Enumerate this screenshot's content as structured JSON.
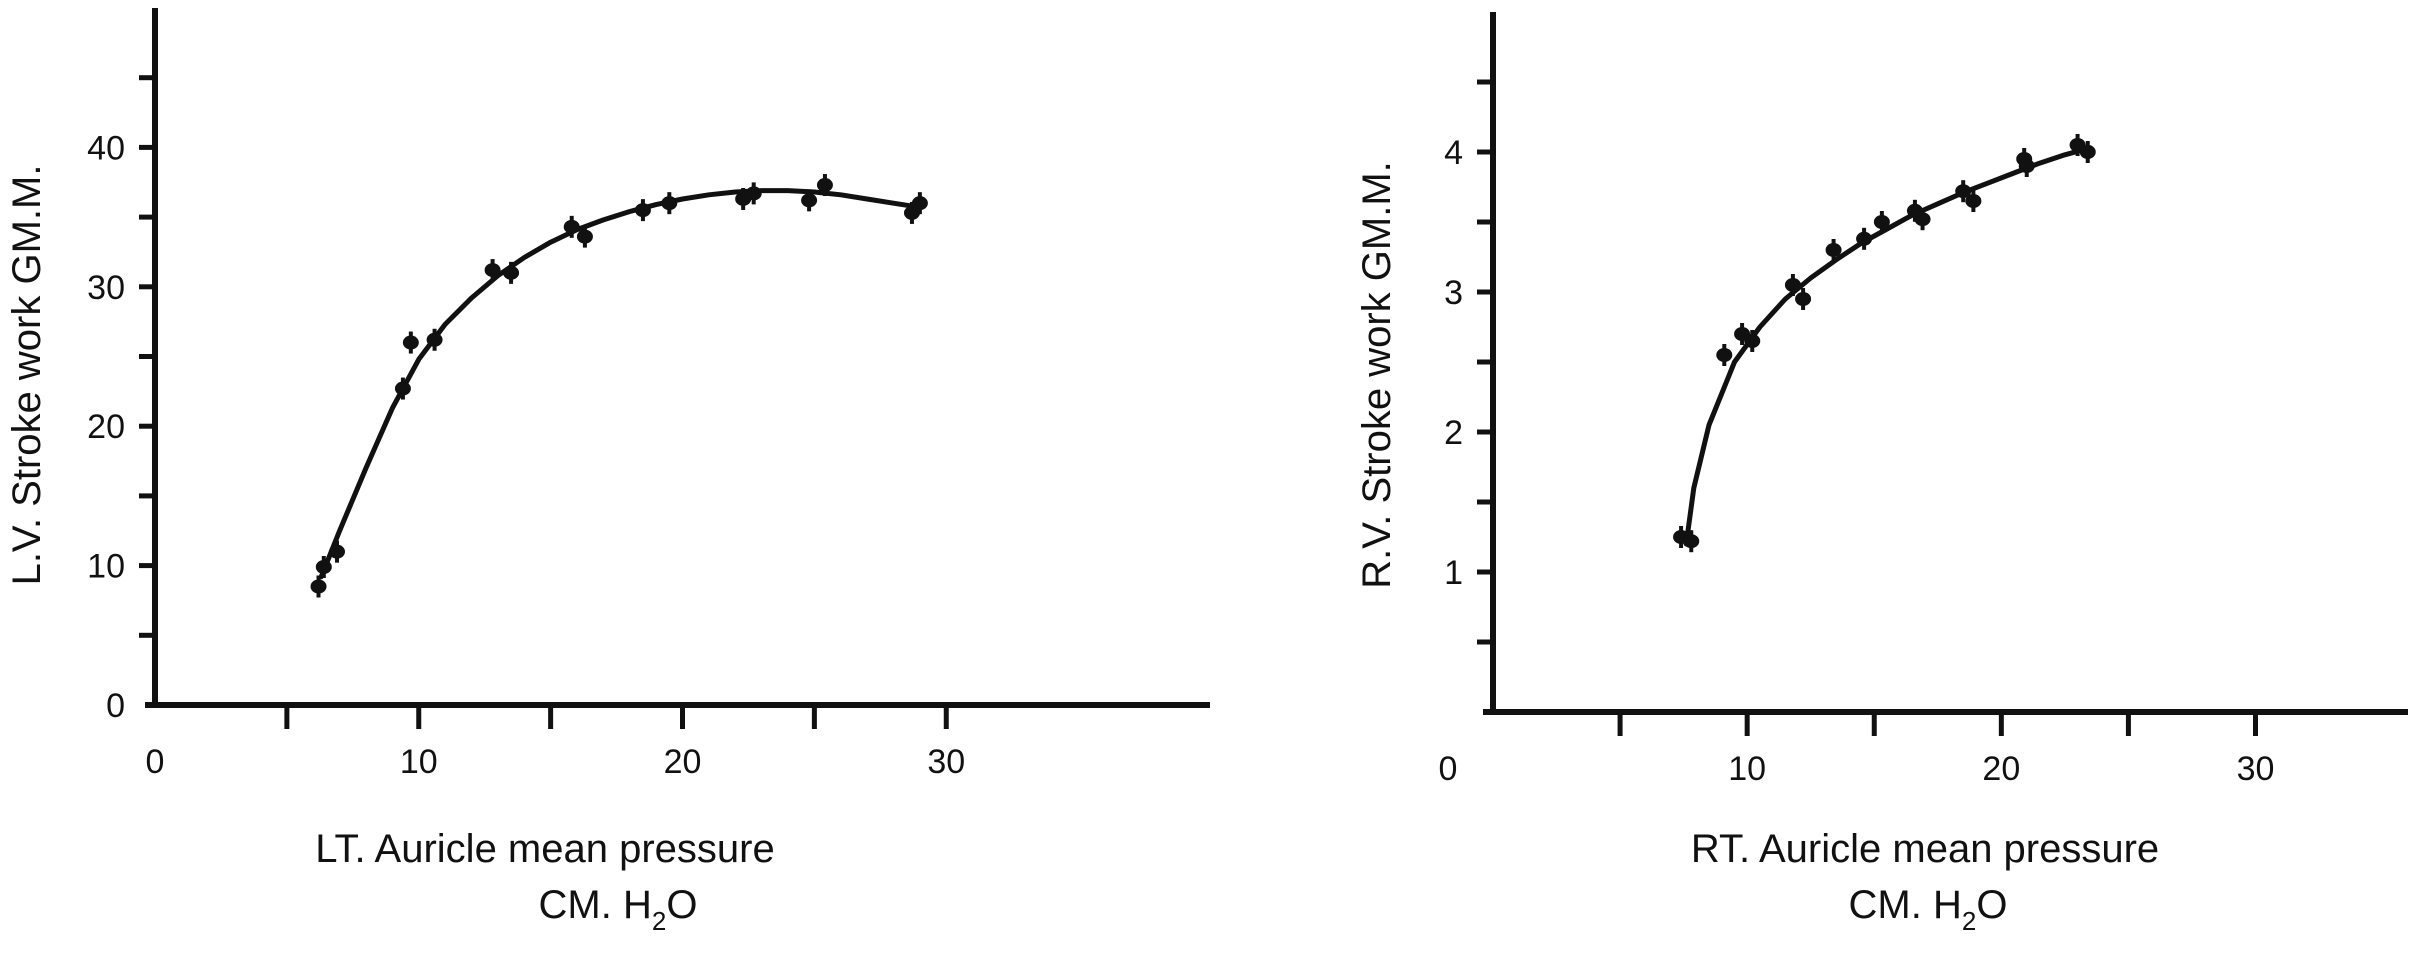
{
  "colors": {
    "ink": "#111111",
    "background": "#ffffff"
  },
  "chart_data": [
    {
      "type": "line",
      "title": "",
      "xlabel": "LT. Auricle mean pressure",
      "xlabel_unit": {
        "prefix": "CM. H",
        "subscript": "2",
        "suffix": "O"
      },
      "ylabel": "L.V. Stroke work GM.M.",
      "xlim": [
        0,
        40
      ],
      "ylim": [
        0,
        50
      ],
      "x_ticks": [
        0,
        10,
        20,
        30
      ],
      "y_ticks": [
        0,
        10,
        20,
        30,
        40
      ],
      "x_minor_ticks": [
        5,
        10,
        15,
        20,
        25,
        30
      ],
      "y_minor_ticks": [
        5,
        10,
        15,
        20,
        25,
        30,
        35,
        40,
        45
      ],
      "grid": false,
      "series": [
        {
          "points": [
            {
              "x": 6.2,
              "y": 8.5
            },
            {
              "x": 6.4,
              "y": 9.9
            },
            {
              "x": 6.9,
              "y": 11.0
            },
            {
              "x": 9.4,
              "y": 22.7
            },
            {
              "x": 9.7,
              "y": 26.0
            },
            {
              "x": 10.6,
              "y": 26.2
            },
            {
              "x": 12.8,
              "y": 31.2
            },
            {
              "x": 13.5,
              "y": 31.0
            },
            {
              "x": 15.8,
              "y": 34.3
            },
            {
              "x": 16.3,
              "y": 33.6
            },
            {
              "x": 18.5,
              "y": 35.5
            },
            {
              "x": 19.5,
              "y": 36.0
            },
            {
              "x": 22.3,
              "y": 36.3
            },
            {
              "x": 22.7,
              "y": 36.7
            },
            {
              "x": 24.8,
              "y": 36.2
            },
            {
              "x": 25.4,
              "y": 37.3
            },
            {
              "x": 28.7,
              "y": 35.3
            },
            {
              "x": 29.0,
              "y": 36.0
            }
          ],
          "curve": [
            [
              6.3,
              9.2
            ],
            [
              7,
              12.5
            ],
            [
              8,
              17
            ],
            [
              9,
              21.3
            ],
            [
              10,
              24.8
            ],
            [
              11,
              27.3
            ],
            [
              12,
              29.2
            ],
            [
              13,
              30.8
            ],
            [
              14,
              32.1
            ],
            [
              15,
              33.2
            ],
            [
              16,
              34.1
            ],
            [
              17,
              34.8
            ],
            [
              18,
              35.4
            ],
            [
              19,
              35.9
            ],
            [
              20,
              36.3
            ],
            [
              21,
              36.6
            ],
            [
              22,
              36.8
            ],
            [
              23,
              36.9
            ],
            [
              24,
              36.9
            ],
            [
              25,
              36.8
            ],
            [
              26,
              36.6
            ],
            [
              27,
              36.3
            ],
            [
              28,
              36.0
            ],
            [
              29,
              35.7
            ]
          ]
        }
      ]
    },
    {
      "type": "line",
      "title": "",
      "xlabel": "RT. Auricle mean pressure",
      "xlabel_unit": {
        "prefix": "CM. H",
        "subscript": "2",
        "suffix": "O"
      },
      "ylabel": "R.V. Stroke work GM.M.",
      "xlim": [
        0,
        36
      ],
      "ylim": [
        0,
        5
      ],
      "x_ticks": [
        0,
        10,
        20,
        30
      ],
      "y_ticks": [
        1,
        2,
        3,
        4
      ],
      "x_minor_ticks": [
        5,
        10,
        15,
        20,
        25,
        30
      ],
      "y_minor_ticks": [
        0.5,
        1,
        1.5,
        2,
        2.5,
        3,
        3.5,
        4,
        4.5
      ],
      "grid": false,
      "series": [
        {
          "points": [
            {
              "x": 7.4,
              "y": 1.25
            },
            {
              "x": 7.8,
              "y": 1.22
            },
            {
              "x": 9.1,
              "y": 2.55
            },
            {
              "x": 9.8,
              "y": 2.7
            },
            {
              "x": 10.2,
              "y": 2.65
            },
            {
              "x": 11.8,
              "y": 3.05
            },
            {
              "x": 12.2,
              "y": 2.95
            },
            {
              "x": 13.4,
              "y": 3.3
            },
            {
              "x": 14.6,
              "y": 3.38
            },
            {
              "x": 15.3,
              "y": 3.5
            },
            {
              "x": 16.6,
              "y": 3.58
            },
            {
              "x": 16.9,
              "y": 3.52
            },
            {
              "x": 18.5,
              "y": 3.72
            },
            {
              "x": 18.9,
              "y": 3.65
            },
            {
              "x": 20.9,
              "y": 3.95
            },
            {
              "x": 21.0,
              "y": 3.9
            },
            {
              "x": 23.0,
              "y": 4.05
            },
            {
              "x": 23.4,
              "y": 4.0
            }
          ],
          "curve": [
            [
              7.6,
              1.2
            ],
            [
              7.9,
              1.6
            ],
            [
              8.5,
              2.05
            ],
            [
              9.5,
              2.5
            ],
            [
              10.5,
              2.75
            ],
            [
              11.5,
              2.95
            ],
            [
              12.5,
              3.1
            ],
            [
              13.5,
              3.23
            ],
            [
              14.5,
              3.35
            ],
            [
              15.5,
              3.45
            ],
            [
              16.5,
              3.55
            ],
            [
              17.5,
              3.63
            ],
            [
              18.5,
              3.71
            ],
            [
              19.5,
              3.78
            ],
            [
              20.5,
              3.85
            ],
            [
              21.5,
              3.92
            ],
            [
              22.5,
              3.98
            ],
            [
              23.5,
              4.03
            ]
          ]
        }
      ]
    }
  ]
}
